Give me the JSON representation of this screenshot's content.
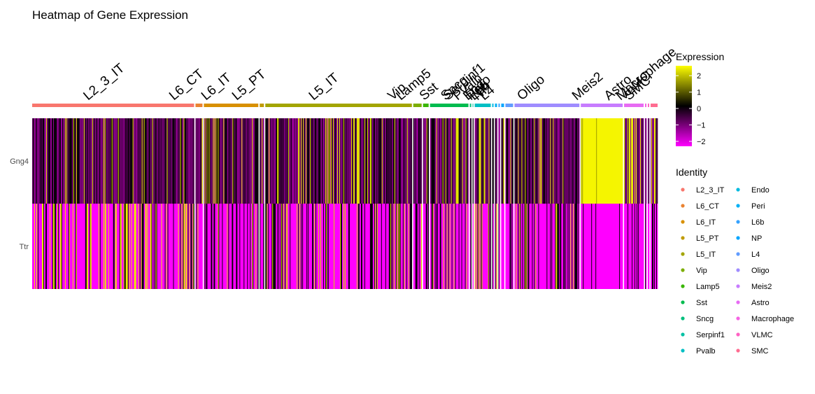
{
  "chart_data": {
    "type": "heatmap",
    "title": "Heatmap of Gene Expression",
    "genes": [
      "Gng4",
      "Ttr"
    ],
    "groups": [
      {
        "name": "L2_3_IT",
        "cells": 232,
        "color": "#F8766D"
      },
      {
        "name": "L6_CT",
        "cells": 10,
        "color": "#EA8331"
      },
      {
        "name": "L6_IT",
        "cells": 78,
        "color": "#D89000"
      },
      {
        "name": "L5_PT",
        "cells": 6,
        "color": "#C09B00"
      },
      {
        "name": "L5_IT",
        "cells": 210,
        "color": "#A3A500"
      },
      {
        "name": "Vip",
        "cells": 12,
        "color": "#7CAE00"
      },
      {
        "name": "Lamp5",
        "cells": 8,
        "color": "#39B600"
      },
      {
        "name": "Sst",
        "cells": 55,
        "color": "#00BB4E"
      },
      {
        "name": "Sncg",
        "cells": 2,
        "color": "#00BF7D"
      },
      {
        "name": "Serpinf1",
        "cells": 1,
        "color": "#00C1A3"
      },
      {
        "name": "Pvalb",
        "cells": 23,
        "color": "#00BFC4"
      },
      {
        "name": "Endo",
        "cells": 2,
        "color": "#00BAE0"
      },
      {
        "name": "Peri",
        "cells": 3,
        "color": "#00B0F6"
      },
      {
        "name": "L6b",
        "cells": 2,
        "color": "#35A2FF"
      },
      {
        "name": "NP",
        "cells": 4,
        "color": "#00A5FF"
      },
      {
        "name": "L4",
        "cells": 11,
        "color": "#619CFF"
      },
      {
        "name": "Oligo",
        "cells": 93,
        "color": "#9F8CFF"
      },
      {
        "name": "Meis2",
        "cells": 60,
        "color": "#C77CFF"
      },
      {
        "name": "Astro",
        "cells": 28,
        "color": "#E76BF3"
      },
      {
        "name": "Macrophage",
        "cells": 2,
        "color": "#F564E3"
      },
      {
        "name": "VLMC",
        "cells": 2,
        "color": "#FF61C3"
      },
      {
        "name": "SMC",
        "cells": 10,
        "color": "#FF6C91"
      }
    ],
    "group_labels_shown": [
      "L2_3_IT",
      "L6_CT",
      "L6_IT",
      "L5_PT",
      "L5_IT",
      "Vip",
      "Lamp5",
      "Sst",
      "Sncg",
      "Serpinf1",
      "Pvalb",
      "Endo",
      "Peri",
      "L6b",
      "NP",
      "L4",
      "Oligo",
      "Meis2",
      "Astro",
      "Macrophage",
      "VLMC",
      "SMC"
    ],
    "color_scale": {
      "title": "Expression",
      "low": "#FF00FF",
      "mid": "#000000",
      "high": "#FFFF00",
      "range": [
        -2.3,
        2.6
      ],
      "ticks": [
        2,
        1,
        0,
        -1,
        -2
      ]
    },
    "identity_legend": {
      "title": "Identity",
      "column1": [
        "L2_3_IT",
        "L6_CT",
        "L6_IT",
        "L5_PT",
        "L5_IT",
        "Vip",
        "Lamp5",
        "Sst",
        "Sncg",
        "Serpinf1",
        "Pvalb"
      ],
      "column2": [
        "Endo",
        "Peri",
        "L6b",
        "NP",
        "L4",
        "Oligo",
        "Meis2",
        "Astro",
        "Macrophage",
        "VLMC",
        "SMC"
      ]
    }
  }
}
